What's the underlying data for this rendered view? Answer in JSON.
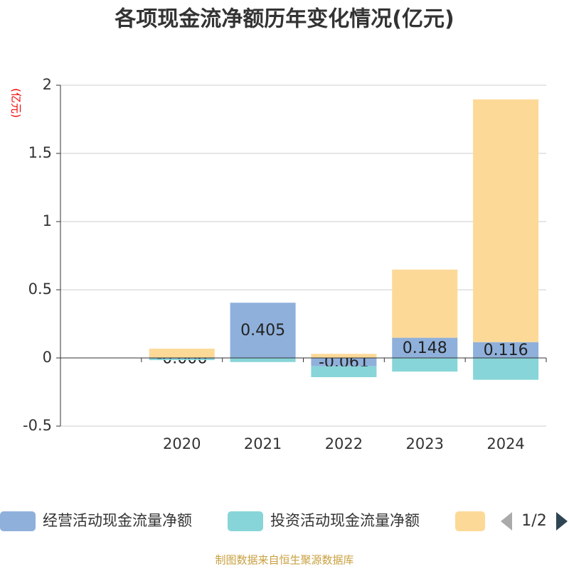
{
  "chart_data": {
    "type": "stacked_bar",
    "title": "各项现金流净额历年变化情况(亿元)",
    "y_axis_label": "(亿元)",
    "categories": [
      null,
      "2020",
      "2021",
      "2022",
      "2023",
      "2024"
    ],
    "series": [
      {
        "name": "经营活动现金流量净额",
        "color": "#8fb0db",
        "labels": true,
        "values": [
          null,
          -0.006,
          0.405,
          -0.061,
          0.148,
          0.116
        ]
      },
      {
        "name": "投资活动现金流量净额",
        "color": "#87d5d8",
        "labels": false,
        "values": [
          null,
          -0.01,
          -0.03,
          -0.08,
          -0.1,
          -0.16
        ]
      },
      {
        "color": "#fdd998",
        "labels": false,
        "values": [
          null,
          0.068,
          null,
          0.03,
          0.5,
          1.78
        ]
      }
    ],
    "ylim": [
      -0.5,
      2
    ],
    "yticks": [
      -0.5,
      0,
      0.5,
      1,
      1.5,
      2
    ],
    "grid": true,
    "legend_page": "1/2",
    "source": "制图数据来自恒生聚源数据库"
  }
}
